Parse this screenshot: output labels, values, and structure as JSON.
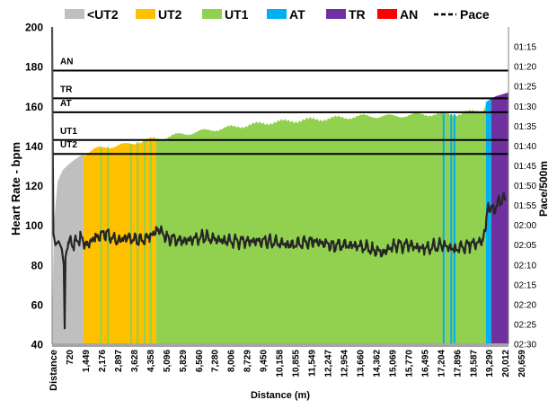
{
  "chart_data": {
    "type": "area",
    "title": "",
    "xlabel": "Distance (m)",
    "ylabel": "Heart Rate - bpm",
    "y2label": "Pace/500m",
    "ylim": [
      40,
      200
    ],
    "y_ticks": [
      40,
      60,
      80,
      100,
      120,
      140,
      160,
      180,
      200
    ],
    "xlim": [
      0,
      21097
    ],
    "x_first_label": "Distance",
    "x_ticks": [
      "720",
      "1,449",
      "2,176",
      "2,897",
      "3,628",
      "4,358",
      "5,096",
      "5,829",
      "6,560",
      "7,280",
      "8,006",
      "8,729",
      "9,450",
      "10,158",
      "10,855",
      "11,549",
      "12,247",
      "12,954",
      "13,660",
      "14,362",
      "15,069",
      "15,770",
      "16,495",
      "17,204",
      "17,896",
      "18,587",
      "19,290",
      "20,012",
      "20,659"
    ],
    "pace_ticks": [
      "01:15",
      "01:20",
      "01:25",
      "01:30",
      "01:35",
      "01:40",
      "01:45",
      "01:50",
      "01:55",
      "02:00",
      "02:05",
      "02:10",
      "02:15",
      "02:20",
      "02:25",
      "02:30"
    ],
    "pace_ticks_seconds": [
      75,
      80,
      85,
      90,
      95,
      100,
      105,
      110,
      115,
      120,
      125,
      130,
      135,
      140,
      145,
      150
    ],
    "pace_range_seconds": [
      70,
      150
    ],
    "zones": [
      {
        "name": "<UT2",
        "color": "#bfbfbf"
      },
      {
        "name": "UT2",
        "color": "#ffc000"
      },
      {
        "name": "UT1",
        "color": "#92d050"
      },
      {
        "name": "AT",
        "color": "#00b0f0"
      },
      {
        "name": "TR",
        "color": "#7030a0"
      },
      {
        "name": "AN",
        "color": "#ff0000"
      }
    ],
    "pace_legend": "Pace",
    "thresholds": [
      {
        "label": "AN",
        "hr": 178
      },
      {
        "label": "TR",
        "hr": 164
      },
      {
        "label": "AT",
        "hr": 157
      },
      {
        "label": "UT1",
        "hr": 143
      },
      {
        "label": "UT2",
        "hr": 136
      }
    ],
    "heart_rate_profile": [
      {
        "distance": 0,
        "hr": 48
      },
      {
        "distance": 80,
        "hr": 100
      },
      {
        "distance": 250,
        "hr": 122
      },
      {
        "distance": 500,
        "hr": 128
      },
      {
        "distance": 900,
        "hr": 132
      },
      {
        "distance": 1300,
        "hr": 135
      },
      {
        "distance": 1700,
        "hr": 137
      },
      {
        "distance": 2200,
        "hr": 139
      },
      {
        "distance": 2900,
        "hr": 140
      },
      {
        "distance": 3600,
        "hr": 141
      },
      {
        "distance": 4400,
        "hr": 143
      },
      {
        "distance": 5100,
        "hr": 144
      },
      {
        "distance": 6000,
        "hr": 146
      },
      {
        "distance": 7300,
        "hr": 148
      },
      {
        "distance": 8700,
        "hr": 150
      },
      {
        "distance": 10200,
        "hr": 152
      },
      {
        "distance": 11600,
        "hr": 153
      },
      {
        "distance": 13000,
        "hr": 154
      },
      {
        "distance": 14400,
        "hr": 155
      },
      {
        "distance": 15800,
        "hr": 155
      },
      {
        "distance": 17200,
        "hr": 156
      },
      {
        "distance": 18600,
        "hr": 156
      },
      {
        "distance": 19300,
        "hr": 157
      },
      {
        "distance": 19950,
        "hr": 158
      },
      {
        "distance": 20050,
        "hr": 162
      },
      {
        "distance": 20300,
        "hr": 164
      },
      {
        "distance": 20500,
        "hr": 165
      },
      {
        "distance": 20800,
        "hr": 166
      },
      {
        "distance": 21097,
        "hr": 167
      }
    ],
    "zone_segments": [
      {
        "zone": "<UT2",
        "from": 0,
        "to": 1450
      },
      {
        "zone": "UT2",
        "from": 1450,
        "to": 4800
      },
      {
        "zone": "UT1",
        "from": 4800,
        "to": 20050
      },
      {
        "zone": "AT",
        "from": 20050,
        "to": 20300
      },
      {
        "zone": "TR",
        "from": 20300,
        "to": 21097
      }
    ],
    "zone_stripes": [
      {
        "zone": "UT1",
        "at": 2260
      },
      {
        "zone": "UT1",
        "at": 2580
      },
      {
        "zone": "UT1",
        "at": 3650
      },
      {
        "zone": "UT1",
        "at": 3950
      },
      {
        "zone": "UT1",
        "at": 4280
      },
      {
        "zone": "UT1",
        "at": 4560
      },
      {
        "zone": "AT",
        "at": 18100
      },
      {
        "zone": "AT",
        "at": 18450
      },
      {
        "zone": "AT",
        "at": 18600
      }
    ],
    "pace_profile": [
      {
        "distance": 0,
        "pace": 70
      },
      {
        "distance": 20,
        "pace": 95
      },
      {
        "distance": 60,
        "pace": 122
      },
      {
        "distance": 150,
        "pace": 125
      },
      {
        "distance": 300,
        "pace": 124
      },
      {
        "distance": 450,
        "pace": 126
      },
      {
        "distance": 540,
        "pace": 130
      },
      {
        "distance": 580,
        "pace": 146
      },
      {
        "distance": 620,
        "pace": 128
      },
      {
        "distance": 750,
        "pace": 124
      },
      {
        "distance": 1000,
        "pace": 125
      },
      {
        "distance": 1300,
        "pace": 123
      },
      {
        "distance": 1600,
        "pace": 125
      },
      {
        "distance": 2000,
        "pace": 123
      },
      {
        "distance": 2500,
        "pace": 122
      },
      {
        "distance": 3000,
        "pace": 124
      },
      {
        "distance": 3500,
        "pace": 123
      },
      {
        "distance": 4000,
        "pace": 124
      },
      {
        "distance": 4500,
        "pace": 123
      },
      {
        "distance": 4900,
        "pace": 121
      },
      {
        "distance": 5300,
        "pace": 123
      },
      {
        "distance": 6000,
        "pace": 124
      },
      {
        "distance": 7000,
        "pace": 123
      },
      {
        "distance": 8000,
        "pace": 124
      },
      {
        "distance": 9000,
        "pace": 124
      },
      {
        "distance": 10000,
        "pace": 124
      },
      {
        "distance": 11000,
        "pace": 125
      },
      {
        "distance": 12000,
        "pace": 124
      },
      {
        "distance": 13000,
        "pace": 125
      },
      {
        "distance": 14000,
        "pace": 125
      },
      {
        "distance": 14800,
        "pace": 126
      },
      {
        "distance": 15300,
        "pace": 127
      },
      {
        "distance": 15800,
        "pace": 125
      },
      {
        "distance": 16500,
        "pace": 125
      },
      {
        "distance": 17200,
        "pace": 126
      },
      {
        "distance": 18000,
        "pace": 125
      },
      {
        "distance": 18600,
        "pace": 126
      },
      {
        "distance": 19300,
        "pace": 125
      },
      {
        "distance": 19900,
        "pace": 124
      },
      {
        "distance": 20050,
        "pace": 120
      },
      {
        "distance": 20150,
        "pace": 115
      },
      {
        "distance": 20400,
        "pace": 116
      },
      {
        "distance": 20700,
        "pace": 114
      },
      {
        "distance": 21000,
        "pace": 113
      }
    ]
  }
}
